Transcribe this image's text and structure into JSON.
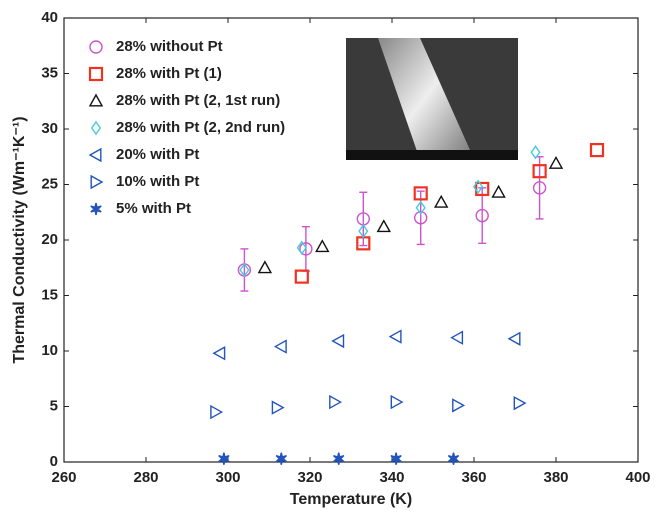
{
  "chart_data": {
    "type": "scatter",
    "x_label": "Temperature (K)",
    "y_label": "Thermal Conductivity (Wm⁻¹K⁻¹)",
    "xlim": [
      260,
      400
    ],
    "xticks": [
      260,
      280,
      300,
      320,
      340,
      360,
      380,
      400
    ],
    "ylim": [
      0,
      40
    ],
    "yticks": [
      0,
      5,
      10,
      15,
      20,
      25,
      30,
      35,
      40
    ],
    "series": [
      {
        "name": "28% without Pt",
        "color": "#cc55cc",
        "marker": "circle",
        "x": [
          304,
          319,
          333,
          347,
          362,
          376
        ],
        "values": [
          17.3,
          19.2,
          21.9,
          22.0,
          22.2,
          24.7
        ],
        "errors": [
          1.9,
          2.0,
          2.4,
          2.4,
          2.5,
          2.8
        ]
      },
      {
        "name": "28% with Pt (1)",
        "color": "#ee3322",
        "marker": "square",
        "x": [
          318,
          333,
          347,
          362,
          376,
          390
        ],
        "values": [
          16.7,
          19.7,
          24.2,
          24.6,
          26.2,
          28.1
        ]
      },
      {
        "name": "28% with Pt (2, 1st run)",
        "color": "#111111",
        "marker": "triangle-up",
        "x": [
          309,
          323,
          338,
          352,
          366,
          380
        ],
        "values": [
          17.5,
          19.4,
          21.2,
          23.4,
          24.3,
          26.9
        ]
      },
      {
        "name": "28% with Pt (2, 2nd run)",
        "color": "#44ccdd",
        "marker": "diamond",
        "x": [
          304,
          318,
          333,
          347,
          361,
          375
        ],
        "values": [
          17.3,
          19.3,
          20.8,
          22.9,
          24.8,
          27.9
        ]
      },
      {
        "name": "20% with Pt",
        "color": "#2255bb",
        "marker": "triangle-left",
        "x": [
          298,
          313,
          327,
          341,
          356,
          370
        ],
        "values": [
          9.8,
          10.4,
          10.9,
          11.3,
          11.2,
          11.1
        ]
      },
      {
        "name": "10% with Pt",
        "color": "#2255bb",
        "marker": "triangle-right",
        "x": [
          297,
          312,
          326,
          341,
          356,
          371
        ],
        "values": [
          4.5,
          4.9,
          5.4,
          5.4,
          5.1,
          5.3
        ]
      },
      {
        "name": "5% with Pt",
        "color": "#2255bb",
        "marker": "star",
        "x": [
          299,
          313,
          327,
          341,
          355
        ],
        "values": [
          0.3,
          0.3,
          0.3,
          0.3,
          0.3
        ]
      }
    ]
  }
}
